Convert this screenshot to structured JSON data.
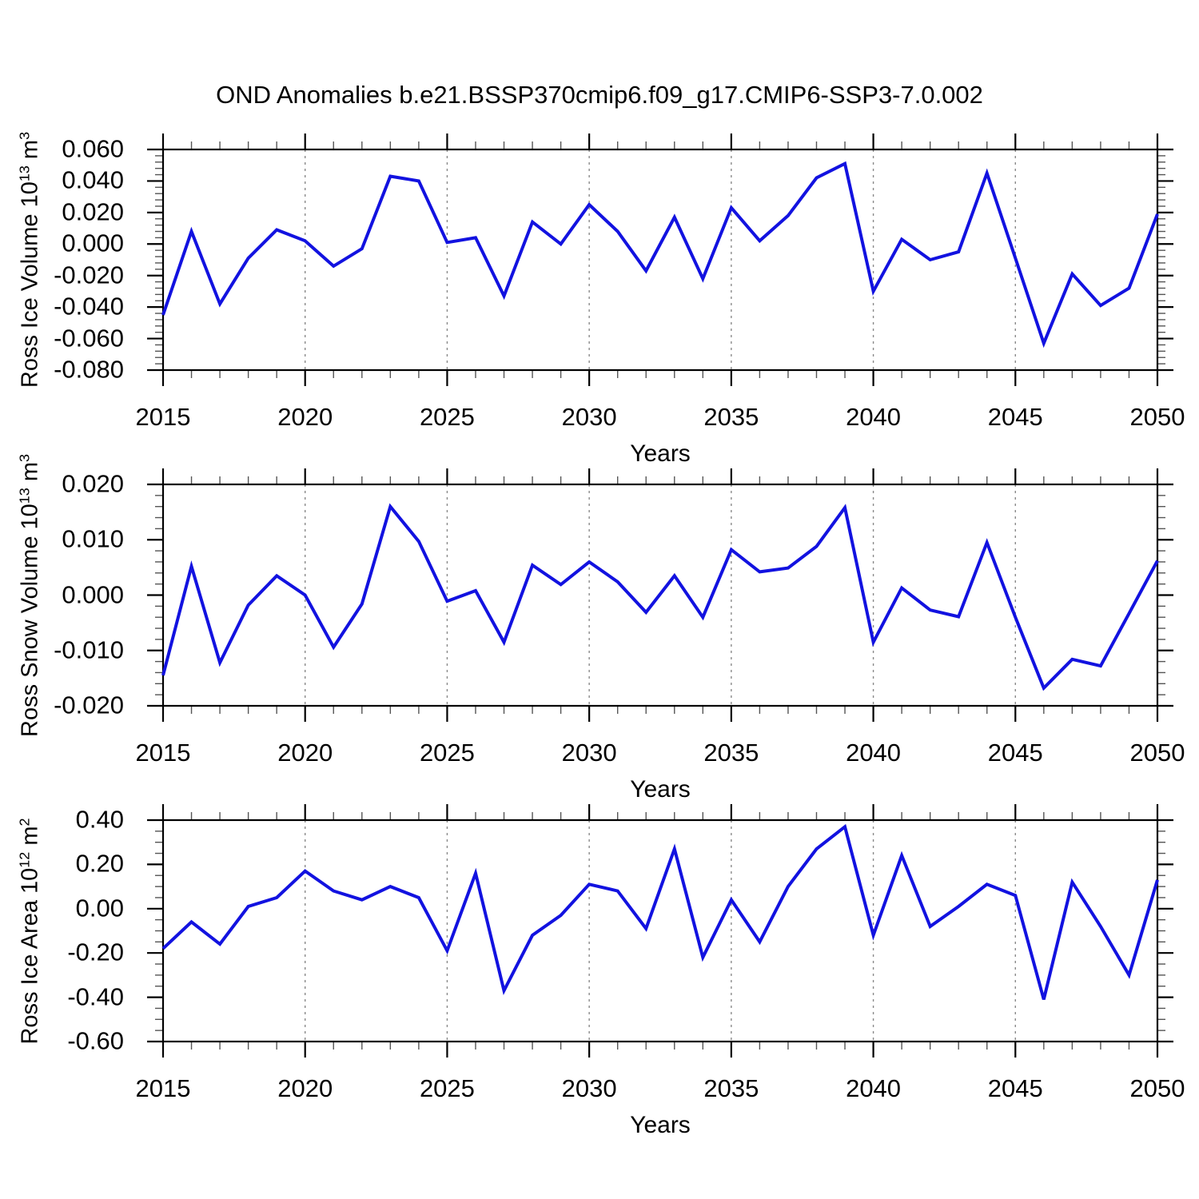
{
  "title": "OND Anomalies b.e21.BSSP370cmip6.f09_g17.CMIP6-SSP3-7.0.002",
  "colors": {
    "line": "#1212e0",
    "axis": "#000000",
    "grid": "#8a8a8a",
    "minor_tick": "#555555"
  },
  "years": [
    2015,
    2016,
    2017,
    2018,
    2019,
    2020,
    2021,
    2022,
    2023,
    2024,
    2025,
    2026,
    2027,
    2028,
    2029,
    2030,
    2031,
    2032,
    2033,
    2034,
    2035,
    2036,
    2037,
    2038,
    2039,
    2040,
    2041,
    2042,
    2043,
    2044,
    2045,
    2046,
    2047,
    2048,
    2049,
    2050
  ],
  "xtick_labels": [
    "2015",
    "2020",
    "2025",
    "2030",
    "2035",
    "2040",
    "2045",
    "2050"
  ],
  "xtick_years": [
    2015,
    2020,
    2025,
    2030,
    2035,
    2040,
    2045,
    2050
  ],
  "grid_years": [
    2020,
    2025,
    2030,
    2035,
    2040,
    2045
  ],
  "chart_data": [
    {
      "type": "line",
      "name": "ross-ice-volume",
      "ylabel_text": "Ross Ice Volume 10^13 m^3",
      "ylabel_parts": [
        "Ross Ice Volume 10",
        {
          "sup": "13"
        },
        " m",
        {
          "sup": "3"
        }
      ],
      "xlabel": "Years",
      "xlim": [
        2015,
        2050
      ],
      "ylim": [
        -0.08,
        0.06
      ],
      "ytick_values": [
        0.06,
        0.04,
        0.02,
        0.0,
        -0.02,
        -0.04,
        -0.06,
        -0.08
      ],
      "ytick_labels": [
        "0.060",
        "0.040",
        "0.020",
        "0.000",
        "-0.020",
        "-0.040",
        "-0.060",
        "-0.080"
      ],
      "ytick_step": 0.02,
      "yminor_step": 0.004,
      "grid": "vertical-dashed",
      "legend": "none",
      "values": [
        -0.045,
        0.008,
        -0.038,
        -0.009,
        0.009,
        0.002,
        -0.014,
        -0.003,
        0.043,
        0.04,
        0.001,
        0.004,
        -0.033,
        0.014,
        0.0,
        0.025,
        0.008,
        -0.017,
        0.017,
        -0.022,
        0.023,
        0.002,
        0.018,
        0.042,
        0.051,
        -0.03,
        0.003,
        -0.01,
        -0.005,
        0.045,
        -0.009,
        -0.063,
        -0.019,
        -0.039,
        -0.028,
        0.019
      ]
    },
    {
      "type": "line",
      "name": "ross-snow-volume",
      "ylabel_text": "Ross Snow Volume 10^13 m^3",
      "ylabel_parts": [
        "Ross Snow Volume 10",
        {
          "sup": "13"
        },
        " m",
        {
          "sup": "3"
        }
      ],
      "xlabel": "Years",
      "xlim": [
        2015,
        2050
      ],
      "ylim": [
        -0.02,
        0.02
      ],
      "ytick_values": [
        0.02,
        0.01,
        0.0,
        -0.01,
        -0.02
      ],
      "ytick_labels": [
        "0.020",
        "0.010",
        "0.000",
        "-0.010",
        "-0.020"
      ],
      "ytick_step": 0.01,
      "yminor_step": 0.002,
      "grid": "vertical-dashed",
      "legend": "none",
      "values": [
        -0.0145,
        0.0052,
        -0.0122,
        -0.0018,
        0.0035,
        0.0,
        -0.0094,
        -0.0016,
        0.016,
        0.0097,
        -0.0011,
        0.0008,
        -0.0085,
        0.0054,
        0.0019,
        0.006,
        0.0024,
        -0.0031,
        0.0035,
        -0.004,
        0.0082,
        0.0042,
        0.0049,
        0.0088,
        0.0158,
        -0.0085,
        0.0013,
        -0.0027,
        -0.0039,
        0.0095,
        -0.004,
        -0.0168,
        -0.0116,
        -0.0128,
        -0.0033,
        0.0062
      ]
    },
    {
      "type": "line",
      "name": "ross-ice-area",
      "ylabel_text": "Ross Ice Area 10^12 m^2",
      "ylabel_parts": [
        "Ross Ice Area 10",
        {
          "sup": "12"
        },
        " m",
        {
          "sup": "2"
        }
      ],
      "xlabel": "Years",
      "xlim": [
        2015,
        2050
      ],
      "ylim": [
        -0.6,
        0.4
      ],
      "ytick_values": [
        0.4,
        0.2,
        0.0,
        -0.2,
        -0.4,
        -0.6
      ],
      "ytick_labels": [
        "0.40",
        "0.20",
        "0.00",
        "-0.20",
        "-0.40",
        "-0.60"
      ],
      "ytick_step": 0.2,
      "yminor_step": 0.05,
      "grid": "vertical-dashed",
      "legend": "none",
      "values": [
        -0.18,
        -0.06,
        -0.16,
        0.01,
        0.05,
        0.17,
        0.08,
        0.04,
        0.1,
        0.05,
        -0.19,
        0.16,
        -0.37,
        -0.12,
        -0.03,
        0.11,
        0.08,
        -0.09,
        0.27,
        -0.22,
        0.04,
        -0.15,
        0.1,
        0.27,
        0.37,
        -0.12,
        0.24,
        -0.08,
        0.01,
        0.11,
        0.06,
        -0.41,
        0.12,
        -0.08,
        -0.3,
        0.13
      ]
    }
  ]
}
